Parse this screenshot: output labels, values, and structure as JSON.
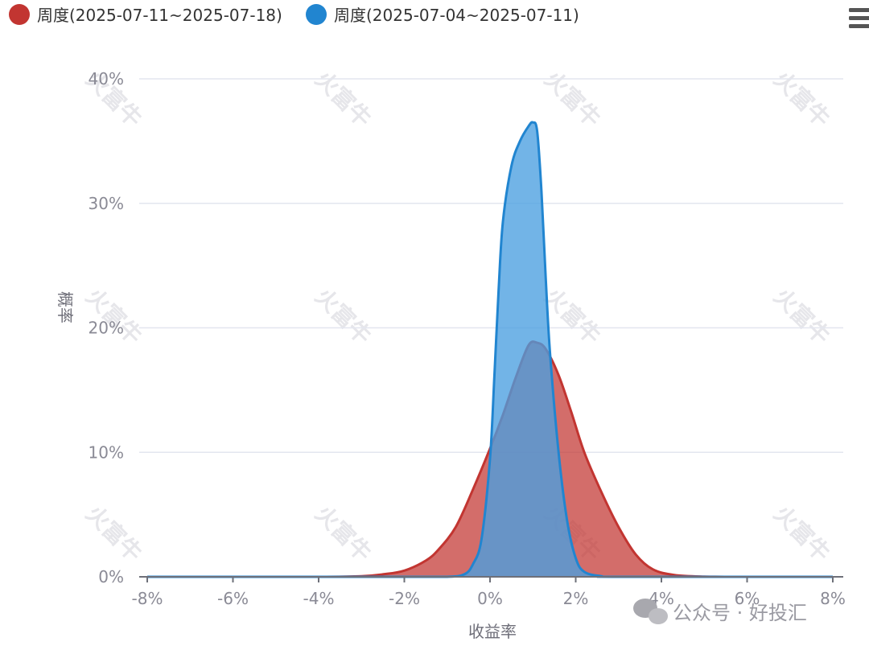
{
  "chart_data": {
    "type": "area",
    "xlabel": "收益率",
    "ylabel": "概率",
    "x_ticks": [
      "-8%",
      "-6%",
      "-4%",
      "-2%",
      "0%",
      "2%",
      "4%",
      "6%",
      "8%"
    ],
    "y_ticks": [
      "0%",
      "10%",
      "20%",
      "30%",
      "40%"
    ],
    "xlim": [
      -8,
      8
    ],
    "ylim": [
      0,
      40
    ],
    "grid": true,
    "legend_position": "top-left",
    "series": [
      {
        "name": "周度(2025-07-11~2025-07-18)",
        "color": "#c23531",
        "fill": "#c23531",
        "points": [
          [
            -8,
            0
          ],
          [
            -6,
            0
          ],
          [
            -4,
            0
          ],
          [
            -3,
            0.05
          ],
          [
            -2.5,
            0.2
          ],
          [
            -2,
            0.5
          ],
          [
            -1.5,
            1.3
          ],
          [
            -1.2,
            2.2
          ],
          [
            -0.8,
            4.0
          ],
          [
            -0.4,
            7.0
          ],
          [
            0,
            10.3
          ],
          [
            0.3,
            13.0
          ],
          [
            0.6,
            16.0
          ],
          [
            0.9,
            18.6
          ],
          [
            1.1,
            18.8
          ],
          [
            1.3,
            18.3
          ],
          [
            1.6,
            16.2
          ],
          [
            1.9,
            13.2
          ],
          [
            2.2,
            10.0
          ],
          [
            2.6,
            6.8
          ],
          [
            3.0,
            4.0
          ],
          [
            3.4,
            1.8
          ],
          [
            3.8,
            0.6
          ],
          [
            4.3,
            0.15
          ],
          [
            5,
            0.02
          ],
          [
            6,
            0
          ],
          [
            8,
            0
          ]
        ]
      },
      {
        "name": "周度(2025-07-04~2025-07-11)",
        "color": "#2185d0",
        "fill": "#4a9fe0",
        "points": [
          [
            -8,
            0
          ],
          [
            -4,
            0
          ],
          [
            -2,
            0
          ],
          [
            -1,
            0
          ],
          [
            -0.6,
            0.2
          ],
          [
            -0.4,
            1.0
          ],
          [
            -0.2,
            3.0
          ],
          [
            0,
            9.5
          ],
          [
            0.1,
            16.0
          ],
          [
            0.2,
            23.0
          ],
          [
            0.3,
            28.5
          ],
          [
            0.5,
            33.0
          ],
          [
            0.7,
            35.0
          ],
          [
            0.9,
            36.2
          ],
          [
            1.0,
            36.5
          ],
          [
            1.1,
            35.8
          ],
          [
            1.2,
            31.0
          ],
          [
            1.3,
            24.0
          ],
          [
            1.4,
            18.0
          ],
          [
            1.6,
            10.0
          ],
          [
            1.8,
            4.5
          ],
          [
            2.0,
            1.5
          ],
          [
            2.2,
            0.4
          ],
          [
            2.6,
            0.05
          ],
          [
            3,
            0
          ],
          [
            8,
            0
          ]
        ]
      }
    ]
  },
  "watermark": {
    "text": "火富牛",
    "brand": "公众号 · 好投汇"
  },
  "toolbar": {
    "menu_icon": "hamburger-menu-icon"
  }
}
